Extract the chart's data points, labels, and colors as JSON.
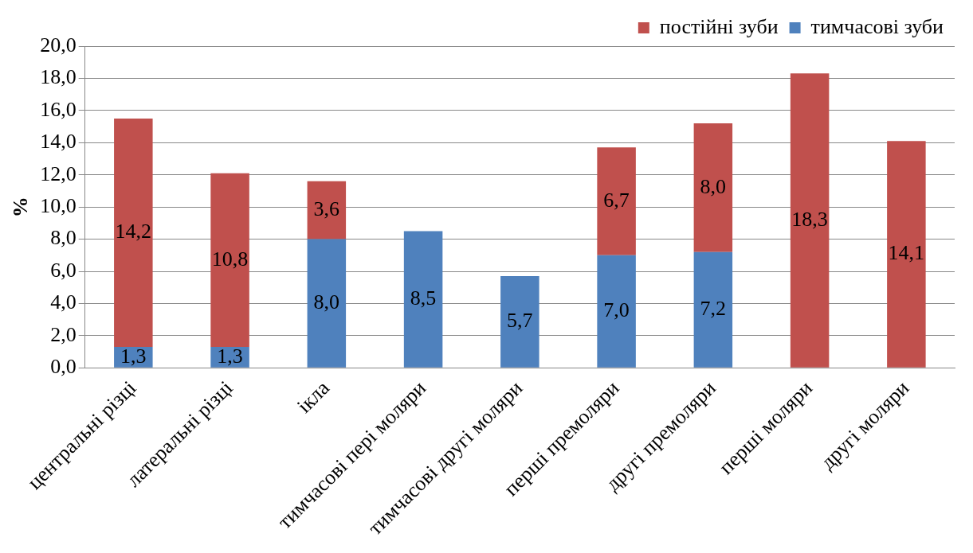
{
  "chart_data": {
    "type": "bar",
    "stacked": true,
    "ylabel": "%",
    "categories": [
      "центральні різці",
      "латеральні різці",
      "ікла",
      "тимчасові пері моляри",
      "тимчасові другі моляри",
      "перші премоляри",
      "другі премоляри",
      "перші моляри",
      "другі моляри"
    ],
    "series": [
      {
        "name": "тимчасові зуби",
        "color": "#4f81bd",
        "values": [
          1.3,
          1.3,
          8.0,
          8.5,
          5.7,
          7.0,
          7.2,
          null,
          null
        ],
        "value_labels": [
          "1,3",
          "1,3",
          "8,0",
          "8,5",
          "5,7",
          "7,0",
          "7,2",
          null,
          null
        ]
      },
      {
        "name": "постійні зуби",
        "color": "#c0504d",
        "values": [
          14.2,
          10.8,
          3.6,
          null,
          null,
          6.7,
          8.0,
          18.3,
          14.1
        ],
        "value_labels": [
          "14,2",
          "10,8",
          "3,6",
          null,
          null,
          "6,7",
          "8,0",
          "18,3",
          "14,1"
        ]
      }
    ],
    "ylim": [
      0,
      20
    ],
    "yticks": [
      {
        "value": 0,
        "label": "0,0"
      },
      {
        "value": 2,
        "label": "2,0"
      },
      {
        "value": 4,
        "label": "4,0"
      },
      {
        "value": 6,
        "label": "6,0"
      },
      {
        "value": 8,
        "label": "8,0"
      },
      {
        "value": 10,
        "label": "10,0"
      },
      {
        "value": 12,
        "label": "12,0"
      },
      {
        "value": 14,
        "label": "14,0"
      },
      {
        "value": 16,
        "label": "16,0"
      },
      {
        "value": 18,
        "label": "18,0"
      },
      {
        "value": 20,
        "label": "20,0"
      }
    ],
    "grid": "y",
    "legend": "top right"
  }
}
